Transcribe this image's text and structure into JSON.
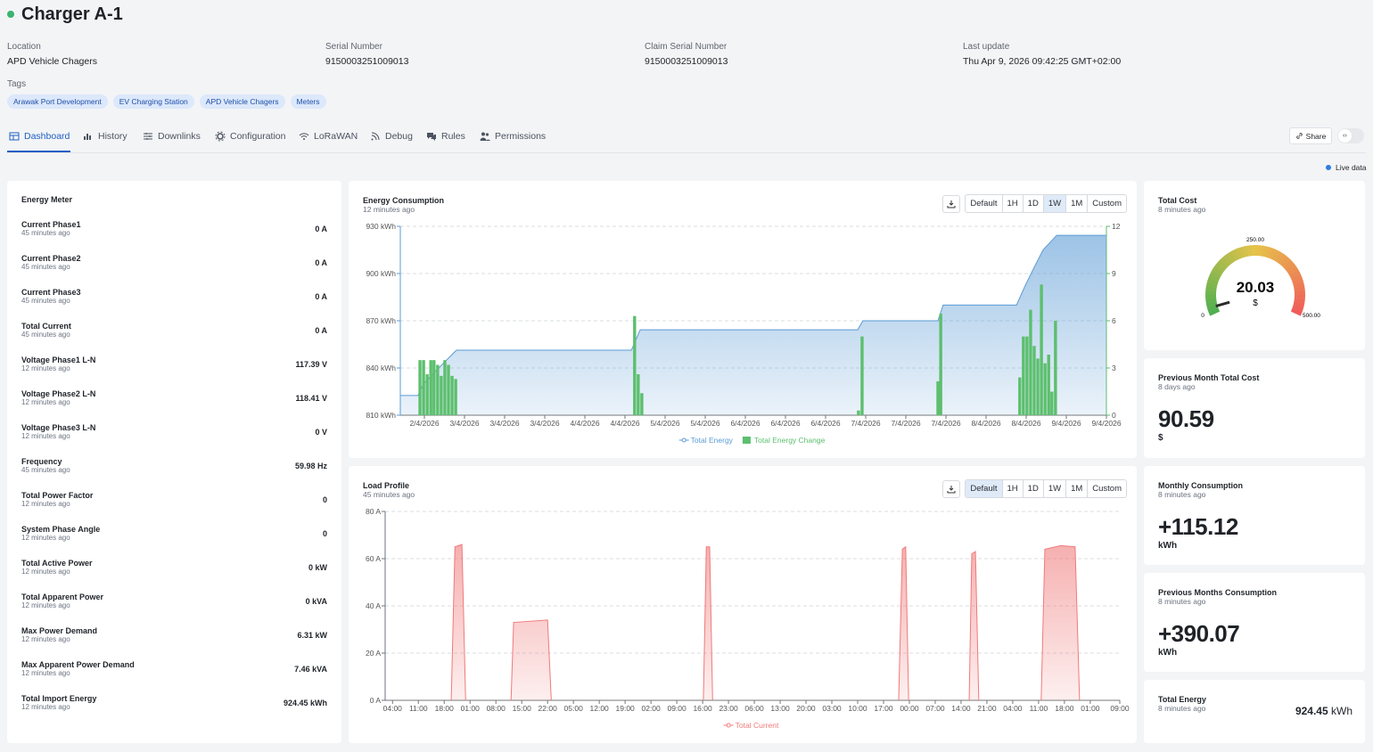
{
  "header": {
    "title": "Charger A-1",
    "fields": [
      {
        "label": "Location",
        "value": "APD Vehicle Chagers"
      },
      {
        "label": "Serial Number",
        "value": "9150003251009013"
      },
      {
        "label": "Claim Serial Number",
        "value": "9150003251009013"
      },
      {
        "label": "Last update",
        "value": "Thu Apr 9, 2026 09:42:25 GMT+02:00"
      }
    ],
    "tags_label": "Tags",
    "tags": [
      "Arawak Port Development",
      "EV Charging Station",
      "APD Vehicle Chagers",
      "Meters"
    ]
  },
  "tabs": [
    "Dashboard",
    "History",
    "Downlinks",
    "Configuration",
    "LoRaWAN",
    "Debug",
    "Rules",
    "Permissions"
  ],
  "share": "Share",
  "live": "Live data",
  "energy_meter": {
    "title": "Energy Meter",
    "rows": [
      {
        "label": "Current Phase1",
        "time": "45 minutes ago",
        "value": "0 A"
      },
      {
        "label": "Current Phase2",
        "time": "45 minutes ago",
        "value": "0 A"
      },
      {
        "label": "Current Phase3",
        "time": "45 minutes ago",
        "value": "0 A"
      },
      {
        "label": "Total Current",
        "time": "45 minutes ago",
        "value": "0 A"
      },
      {
        "label": "Voltage Phase1 L-N",
        "time": "12 minutes ago",
        "value": "117.39 V"
      },
      {
        "label": "Voltage Phase2 L-N",
        "time": "12 minutes ago",
        "value": "118.41 V"
      },
      {
        "label": "Voltage Phase3 L-N",
        "time": "12 minutes ago",
        "value": "0 V"
      },
      {
        "label": "Frequency",
        "time": "45 minutes ago",
        "value": "59.98 Hz"
      },
      {
        "label": "Total Power Factor",
        "time": "12 minutes ago",
        "value": "0"
      },
      {
        "label": "System Phase Angle",
        "time": "12 minutes ago",
        "value": "0"
      },
      {
        "label": "Total Active Power",
        "time": "12 minutes ago",
        "value": "0 kW"
      },
      {
        "label": "Total Apparent Power",
        "time": "12 minutes ago",
        "value": "0 kVA"
      },
      {
        "label": "Max Power Demand",
        "time": "12 minutes ago",
        "value": "6.31 kW"
      },
      {
        "label": "Max Apparent Power Demand",
        "time": "12 minutes ago",
        "value": "7.46 kVA"
      },
      {
        "label": "Total Import Energy",
        "time": "12 minutes ago",
        "value": "924.45 kWh"
      }
    ]
  },
  "chart_data": [
    {
      "type": "combo",
      "title": "Energy Consumption",
      "subtitle": "12 minutes ago",
      "buttons": [
        "Default",
        "1H",
        "1D",
        "1W",
        "1M",
        "Custom"
      ],
      "active": "1W",
      "grid": true,
      "xlim": [
        -0.6,
        17
      ],
      "xticks": [
        {
          "value": 0,
          "label": "2/4/2026"
        },
        {
          "value": 1,
          "label": "3/4/2026"
        },
        {
          "value": 2,
          "label": "3/4/2026"
        },
        {
          "value": 3,
          "label": "3/4/2026"
        },
        {
          "value": 4,
          "label": "4/4/2026"
        },
        {
          "value": 5,
          "label": "4/4/2026"
        },
        {
          "value": 6,
          "label": "5/4/2026"
        },
        {
          "value": 7,
          "label": "5/4/2026"
        },
        {
          "value": 8,
          "label": "6/4/2026"
        },
        {
          "value": 9,
          "label": "6/4/2026"
        },
        {
          "value": 10,
          "label": "6/4/2026"
        },
        {
          "value": 11,
          "label": "7/4/2026"
        },
        {
          "value": 12,
          "label": "7/4/2026"
        },
        {
          "value": 13,
          "label": "7/4/2026"
        },
        {
          "value": 14,
          "label": "8/4/2026"
        },
        {
          "value": 15,
          "label": "8/4/2026"
        },
        {
          "value": 16,
          "label": "9/4/2026"
        },
        {
          "value": 17,
          "label": "9/4/2026"
        }
      ],
      "ylim": [
        810,
        930
      ],
      "yticks": [
        {
          "value": 810,
          "label": "810 kWh"
        },
        {
          "value": 840,
          "label": "840 kWh"
        },
        {
          "value": 870,
          "label": "870 kWh"
        },
        {
          "value": 900,
          "label": "900 kWh"
        },
        {
          "value": 930,
          "label": "930 kWh"
        }
      ],
      "y2lim": [
        0,
        12
      ],
      "y2ticks": [
        0,
        3,
        6,
        9,
        12
      ],
      "series": [
        {
          "name": "Total Energy",
          "type": "area",
          "color": "#5b9bd5",
          "x": [
            -0.6,
            -0.16,
            -0.02,
            0.53,
            0.8,
            5.16,
            5.38,
            10.8,
            10.93,
            12.8,
            12.93,
            14.76,
            14.98,
            15.2,
            15.42,
            15.76,
            17
          ],
          "values": [
            822.5,
            822.5,
            830,
            844.5,
            851.3,
            851.3,
            864.3,
            864.3,
            870,
            870,
            880,
            880,
            892.6,
            904,
            915,
            924.3,
            924.3
          ]
        },
        {
          "name": "Total Energy Change",
          "type": "bar",
          "axis": "y2",
          "color": "#5cbf6e",
          "x": [
            -0.11,
            -0.02,
            0.07,
            0.16,
            0.24,
            0.33,
            0.42,
            0.51,
            0.6,
            0.69,
            0.78,
            5.24,
            5.33,
            5.42,
            10.82,
            10.91,
            12.8,
            12.87,
            14.84,
            14.93,
            15.02,
            15.11,
            15.2,
            15.29,
            15.38,
            15.47,
            15.56,
            15.64,
            15.73
          ],
          "values": [
            3.5,
            3.5,
            2.6,
            3.5,
            3.5,
            3.2,
            2.5,
            3.5,
            3.2,
            2.5,
            2.3,
            6.3,
            2.6,
            1.4,
            0.3,
            5.0,
            2.15,
            6.45,
            2.4,
            5.0,
            5.0,
            6.7,
            4.4,
            3.6,
            8.3,
            3.3,
            3.85,
            1.5,
            6.0
          ]
        }
      ]
    },
    {
      "type": "area",
      "title": "Load Profile",
      "subtitle": "45 minutes ago",
      "buttons": [
        "Default",
        "1H",
        "1D",
        "1W",
        "1M",
        "Custom"
      ],
      "active": "Default",
      "grid": true,
      "xlim": [
        -2,
        197
      ],
      "xticks": [
        {
          "value": 0,
          "label": "04:00"
        },
        {
          "value": 7,
          "label": "11:00"
        },
        {
          "value": 14,
          "label": "18:00"
        },
        {
          "value": 21,
          "label": "01:00"
        },
        {
          "value": 28,
          "label": "08:00"
        },
        {
          "value": 35,
          "label": "15:00"
        },
        {
          "value": 42,
          "label": "22:00"
        },
        {
          "value": 49,
          "label": "05:00"
        },
        {
          "value": 56,
          "label": "12:00"
        },
        {
          "value": 63,
          "label": "19:00"
        },
        {
          "value": 70,
          "label": "02:00"
        },
        {
          "value": 77,
          "label": "09:00"
        },
        {
          "value": 84,
          "label": "16:00"
        },
        {
          "value": 91,
          "label": "23:00"
        },
        {
          "value": 98,
          "label": "06:00"
        },
        {
          "value": 105,
          "label": "13:00"
        },
        {
          "value": 112,
          "label": "20:00"
        },
        {
          "value": 119,
          "label": "03:00"
        },
        {
          "value": 126,
          "label": "10:00"
        },
        {
          "value": 133,
          "label": "17:00"
        },
        {
          "value": 140,
          "label": "00:00"
        },
        {
          "value": 147,
          "label": "07:00"
        },
        {
          "value": 154,
          "label": "14:00"
        },
        {
          "value": 161,
          "label": "21:00"
        },
        {
          "value": 168,
          "label": "04:00"
        },
        {
          "value": 175,
          "label": "11:00"
        },
        {
          "value": 182,
          "label": "18:00"
        },
        {
          "value": 189,
          "label": "01:00"
        },
        {
          "value": 197,
          "label": "09:00"
        }
      ],
      "ylim": [
        0,
        80
      ],
      "yticks": [
        {
          "value": 0,
          "label": "0 A"
        },
        {
          "value": 20,
          "label": "20 A"
        },
        {
          "value": 40,
          "label": "40 A"
        },
        {
          "value": 60,
          "label": "60 A"
        },
        {
          "value": 80,
          "label": "80 A"
        }
      ],
      "series": [
        {
          "name": "Total Current",
          "type": "area",
          "color": "#f07a7a",
          "x": [
            15.9,
            16.9,
            18.8,
            19.8,
            26,
            32.1,
            32.8,
            42.0,
            43.0,
            60,
            84.2,
            85.0,
            85.9,
            86.7,
            110,
            137.1,
            138.1,
            139.0,
            139.8,
            148,
            156.2,
            156.9,
            157.9,
            158.8,
            167,
            175.7,
            176.7,
            181.0,
            184.9,
            186.1
          ],
          "values": [
            0,
            65,
            66,
            0,
            null,
            0,
            33,
            34,
            0,
            null,
            0,
            65,
            65,
            0,
            null,
            0,
            64,
            65,
            0,
            null,
            0,
            62,
            63,
            0,
            null,
            0,
            64,
            65.5,
            65,
            0
          ]
        }
      ]
    }
  ],
  "gauge": {
    "title": "Total Cost",
    "time": "8 minutes ago",
    "value": 20.03,
    "unit": "$",
    "min": 0,
    "max": {
      "value": 500,
      "label": "500.00"
    },
    "mid": {
      "value": 250,
      "label": "250.00"
    },
    "colors": [
      "#4caf50",
      "#e6c34a",
      "#f05a5a"
    ]
  },
  "cards": [
    {
      "title": "Previous Month Total Cost",
      "time": "8 days ago",
      "value": "90.59",
      "unit": "$"
    },
    {
      "title": "Monthly Consumption",
      "time": "8 minutes ago",
      "value": "+115.12",
      "unit": "kWh"
    },
    {
      "title": "Previous Months Consumption",
      "time": "8 minutes ago",
      "value": "+390.07",
      "unit": "kWh"
    },
    {
      "title": "Total Energy",
      "time": "8 minutes ago",
      "value": "924.45",
      "unit": "kWh"
    }
  ]
}
